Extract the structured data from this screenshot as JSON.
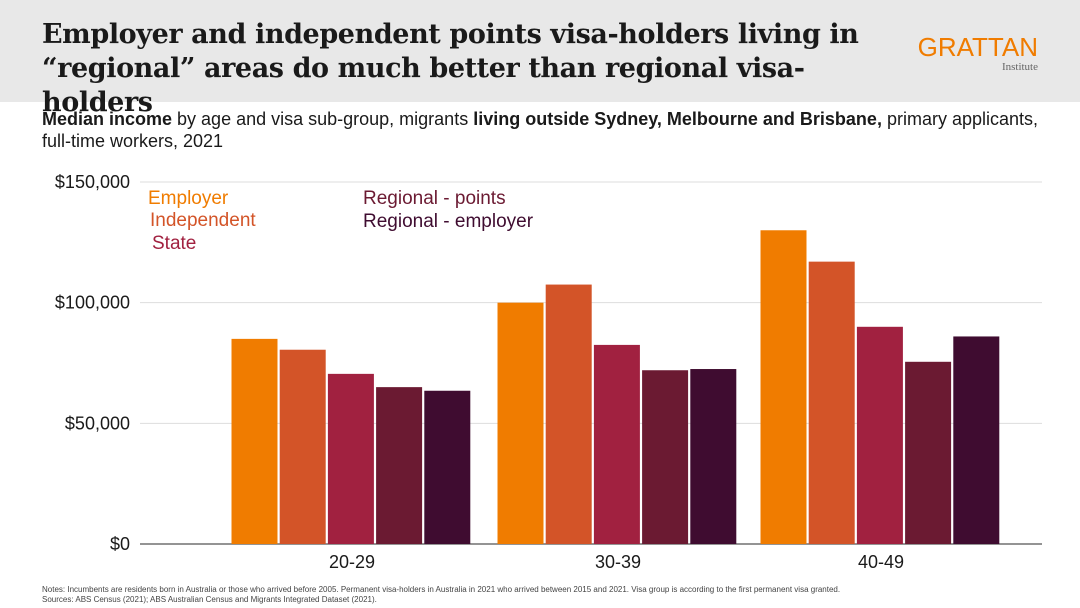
{
  "header": {
    "title_line1": "Employer and independent points visa-holders living in",
    "title_line2": "“regional” areas do much better than regional visa-holders",
    "logo_text": "GRATTAN",
    "logo_subtext": "Institute"
  },
  "subtitle": {
    "part1": "Median income",
    "part2": " by age and visa sub-group, migrants ",
    "part3": "living outside Sydney, Melbourne and Brisbane,",
    "part4": " primary applicants, full-time workers, 2021"
  },
  "chart_data": {
    "type": "bar",
    "categories": [
      "20-29",
      "30-39",
      "40-49"
    ],
    "series": [
      {
        "name": "Employer",
        "color": "#f07c00",
        "values": [
          85000,
          100000,
          130000
        ]
      },
      {
        "name": "Independent",
        "color": "#d35428",
        "values": [
          80500,
          107500,
          117000
        ]
      },
      {
        "name": "State",
        "color": "#a12140",
        "values": [
          70500,
          82500,
          90000
        ]
      },
      {
        "name": "Regional - points",
        "color": "#6b1a32",
        "values": [
          65000,
          72000,
          75500
        ]
      },
      {
        "name": "Regional - employer",
        "color": "#3f0c30",
        "values": [
          63500,
          72500,
          86000
        ]
      }
    ],
    "yticks": [
      {
        "value": 0,
        "label": "$0"
      },
      {
        "value": 50000,
        "label": "$50,000"
      },
      {
        "value": 100000,
        "label": "$100,000"
      },
      {
        "value": 150000,
        "label": "$150,000"
      }
    ],
    "ylim": [
      0,
      150000
    ],
    "grid": true,
    "legend_position": "top-left",
    "xlabel": "",
    "ylabel": ""
  },
  "notes": {
    "line1": "Notes: Incumbents are residents born in Australia or those who arrived before 2005. Permanent visa-holders in Australia in 2021 who arrived between 2015 and 2021. Visa group is according to the first permanent visa granted.",
    "line2": "Sources: ABS Census (2021); ABS Australian Census and Migrants Integrated Dataset (2021)."
  }
}
